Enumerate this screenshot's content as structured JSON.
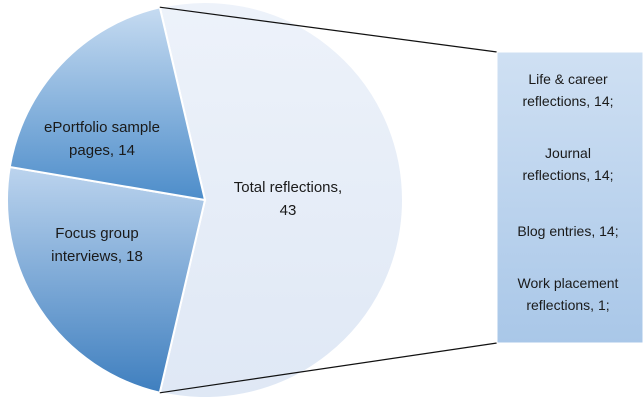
{
  "chart_data": {
    "type": "pie",
    "title": "",
    "pie": {
      "slices": [
        {
          "label": "Total reflections",
          "value": 43,
          "label_lines": [
            "Total reflections,",
            "43"
          ],
          "color": "#e6edf7"
        },
        {
          "label": "Focus group interviews",
          "value": 18,
          "label_lines": [
            "Focus group",
            "interviews, 18"
          ],
          "color": "#5b93c9"
        },
        {
          "label": "ePortfolio sample pages",
          "value": 14,
          "label_lines": [
            "ePortfolio sample",
            "pages, 14"
          ],
          "color": "#7aaad9"
        }
      ]
    },
    "breakdown": {
      "of": "Total reflections",
      "items": [
        {
          "label": "Life & career reflections",
          "value": 14,
          "label_lines": [
            "Life & career",
            "reflections, 14;"
          ]
        },
        {
          "label": "Journal reflections",
          "value": 14,
          "label_lines": [
            "Journal",
            "reflections, 14;"
          ]
        },
        {
          "label": "Blog entries",
          "value": 14,
          "label_lines": [
            "Blog entries, 14;"
          ]
        },
        {
          "label": "Work placement reflections",
          "value": 1,
          "label_lines": [
            "Work placement",
            "reflections, 1;"
          ]
        }
      ],
      "color": "#b8d1ec"
    }
  }
}
